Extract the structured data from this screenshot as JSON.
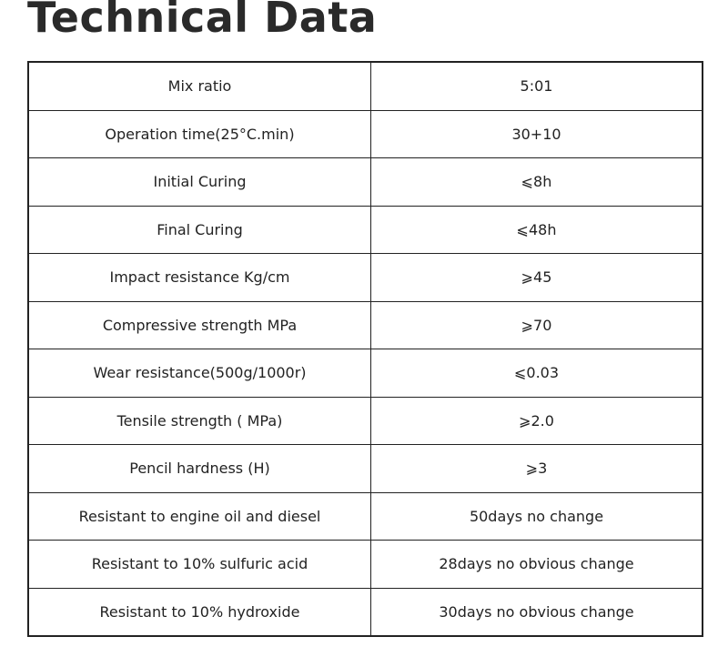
{
  "header": {
    "title": "Technical Data"
  },
  "table": {
    "rows": [
      [
        "Mix ratio",
        "5:01"
      ],
      [
        "Operation time(25°C.min)",
        "30+10"
      ],
      [
        "Initial Curing",
        "⩽8h"
      ],
      [
        "Final Curing",
        "⩽48h"
      ],
      [
        "Impact resistance Kg/cm",
        "⩾45"
      ],
      [
        "Compressive strength MPa",
        "⩾70"
      ],
      [
        "Wear resistance(500g/1000r)",
        "⩽0.03"
      ],
      [
        "Tensile strength ( MPa)",
        "⩾2.0"
      ],
      [
        "Pencil hardness (H)",
        "⩾3"
      ],
      [
        "Resistant to engine oil and diesel",
        "50days no change"
      ],
      [
        "Resistant to 10% sulfuric acid",
        "28days no obvious change"
      ],
      [
        "Resistant to 10% hydroxide",
        "30days no obvious change"
      ]
    ]
  }
}
